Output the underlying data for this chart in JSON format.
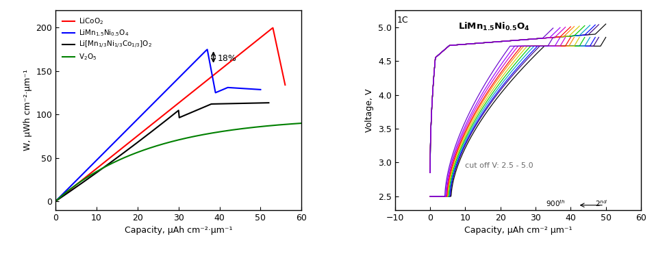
{
  "left_xlim": [
    0,
    60
  ],
  "left_ylim": [
    -10,
    220
  ],
  "left_xticks": [
    0,
    10,
    20,
    30,
    40,
    50,
    60
  ],
  "left_yticks": [
    0,
    50,
    100,
    150,
    200
  ],
  "left_xlabel": "Capacity, μAh cm⁻²·μm⁻¹",
  "left_ylabel": "W, μWh cm⁻²·μm⁻¹",
  "right_xlim": [
    -10,
    60
  ],
  "right_ylim": [
    2.3,
    5.25
  ],
  "right_xticks": [
    -10,
    0,
    10,
    20,
    30,
    40,
    50,
    60
  ],
  "right_yticks": [
    2.5,
    3.0,
    3.5,
    4.0,
    4.5,
    5.0
  ],
  "right_xlabel": "Capacity, μAh cm⁻² μm⁻¹",
  "right_ylabel": "Voltage, V",
  "cycle_colors": [
    "#000000",
    "#3B0080",
    "#0000FF",
    "#0099CC",
    "#00CC00",
    "#CCCC00",
    "#FF8800",
    "#FF0000",
    "#CC00CC",
    "#9900FF",
    "#6600CC"
  ],
  "max_caps": [
    50,
    48,
    47,
    45.5,
    44,
    42.5,
    41,
    40,
    38.5,
    37,
    35
  ]
}
